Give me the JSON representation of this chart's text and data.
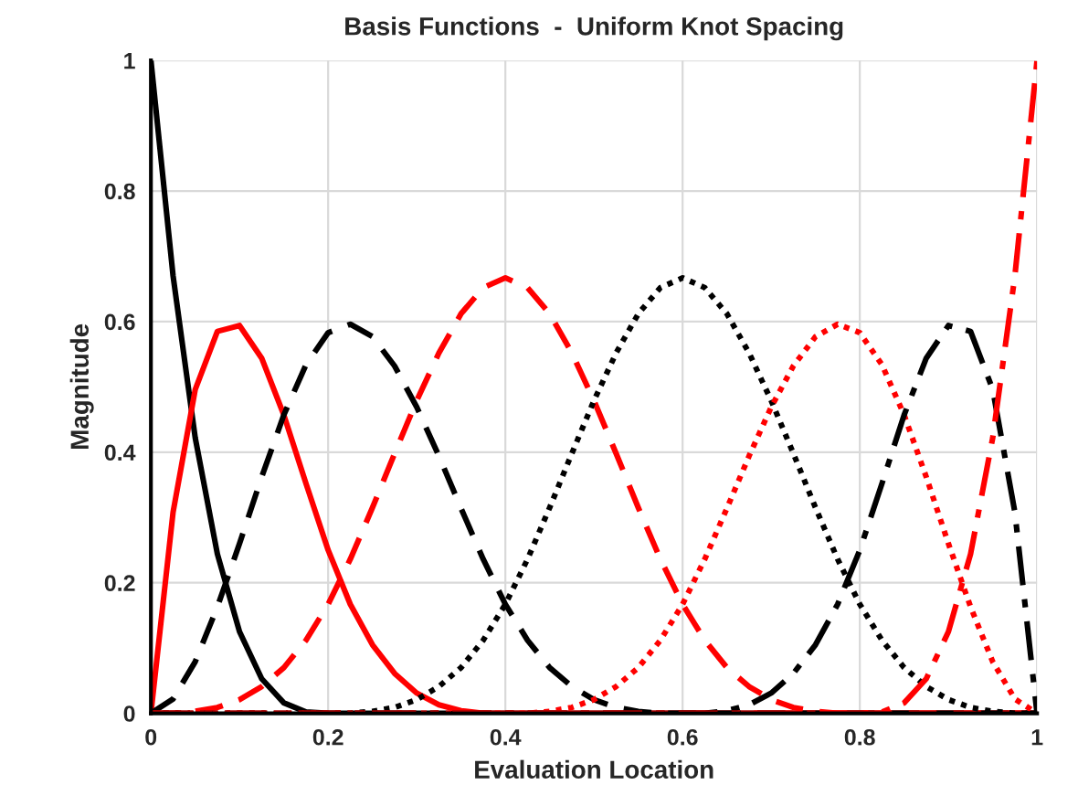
{
  "chart_data": {
    "type": "line",
    "title": "Basis Functions  -  Uniform Knot Spacing",
    "xlabel": "Evaluation Location",
    "ylabel": "Magnitude",
    "x": [
      0,
      0.025,
      0.05,
      0.075,
      0.1,
      0.125,
      0.15,
      0.175,
      0.2,
      0.225,
      0.25,
      0.275,
      0.3,
      0.325,
      0.35,
      0.375,
      0.4,
      0.425,
      0.45,
      0.475,
      0.5,
      0.525,
      0.55,
      0.575,
      0.6,
      0.625,
      0.65,
      0.675,
      0.7,
      0.725,
      0.75,
      0.775,
      0.8,
      0.825,
      0.85,
      0.875,
      0.9,
      0.925,
      0.95,
      0.975,
      1
    ],
    "series": [
      {
        "color": "#000000",
        "line_style": "solid",
        "values": [
          1,
          0.67,
          0.422,
          0.244,
          0.125,
          0.053,
          0.016,
          0.002,
          0,
          0,
          0,
          0,
          0,
          0,
          0,
          0,
          0,
          0,
          0,
          0,
          0,
          0,
          0,
          0,
          0,
          0,
          0,
          0,
          0,
          0,
          0,
          0,
          0,
          0,
          0,
          0,
          0,
          0,
          0,
          0,
          0
        ]
      },
      {
        "color": "#ff0000",
        "line_style": "solid",
        "values": [
          0,
          0.308,
          0.496,
          0.585,
          0.594,
          0.544,
          0.457,
          0.352,
          0.25,
          0.167,
          0.105,
          0.061,
          0.031,
          0.013,
          0.004,
          0,
          0,
          0,
          0,
          0,
          0,
          0,
          0,
          0,
          0,
          0,
          0,
          0,
          0,
          0,
          0,
          0,
          0,
          0,
          0,
          0,
          0,
          0,
          0,
          0,
          0
        ]
      },
      {
        "color": "#000000",
        "line_style": "dashed",
        "values": [
          0,
          0.022,
          0.079,
          0.163,
          0.26,
          0.362,
          0.457,
          0.534,
          0.583,
          0.596,
          0.577,
          0.532,
          0.469,
          0.394,
          0.314,
          0.236,
          0.167,
          0.112,
          0.07,
          0.041,
          0.021,
          0.009,
          0.003,
          0,
          0,
          0,
          0,
          0,
          0,
          0,
          0,
          0,
          0,
          0,
          0,
          0,
          0,
          0,
          0,
          0,
          0
        ]
      },
      {
        "color": "#ff0000",
        "line_style": "dashed",
        "values": [
          0,
          0,
          0.003,
          0.009,
          0.021,
          0.041,
          0.07,
          0.112,
          0.167,
          0.236,
          0.315,
          0.398,
          0.479,
          0.552,
          0.612,
          0.652,
          0.667,
          0.652,
          0.612,
          0.552,
          0.479,
          0.398,
          0.315,
          0.236,
          0.167,
          0.112,
          0.07,
          0.041,
          0.021,
          0.009,
          0.003,
          0,
          0,
          0,
          0,
          0,
          0,
          0,
          0,
          0,
          0
        ]
      },
      {
        "color": "#000000",
        "line_style": "dotted",
        "values": [
          0,
          0,
          0,
          0,
          0,
          0,
          0,
          0,
          0,
          0,
          0.003,
          0.009,
          0.021,
          0.041,
          0.07,
          0.112,
          0.167,
          0.236,
          0.315,
          0.398,
          0.479,
          0.552,
          0.612,
          0.652,
          0.667,
          0.652,
          0.612,
          0.552,
          0.479,
          0.398,
          0.315,
          0.236,
          0.167,
          0.112,
          0.07,
          0.041,
          0.021,
          0.009,
          0.003,
          0,
          0
        ]
      },
      {
        "color": "#ff0000",
        "line_style": "dotted",
        "values": [
          0,
          0,
          0,
          0,
          0,
          0,
          0,
          0,
          0,
          0,
          0,
          0,
          0,
          0,
          0,
          0,
          0,
          0,
          0.003,
          0.009,
          0.021,
          0.041,
          0.07,
          0.112,
          0.167,
          0.236,
          0.314,
          0.394,
          0.469,
          0.532,
          0.577,
          0.596,
          0.583,
          0.534,
          0.457,
          0.362,
          0.26,
          0.163,
          0.079,
          0.022,
          0
        ]
      },
      {
        "color": "#000000",
        "line_style": "dashdot",
        "values": [
          0,
          0,
          0,
          0,
          0,
          0,
          0,
          0,
          0,
          0,
          0,
          0,
          0,
          0,
          0,
          0,
          0,
          0,
          0,
          0,
          0,
          0,
          0,
          0,
          0,
          0,
          0.004,
          0.013,
          0.031,
          0.061,
          0.105,
          0.167,
          0.25,
          0.352,
          0.457,
          0.544,
          0.594,
          0.585,
          0.496,
          0.308,
          0
        ]
      },
      {
        "color": "#ff0000",
        "line_style": "dashdot",
        "values": [
          0,
          0,
          0,
          0,
          0,
          0,
          0,
          0,
          0,
          0,
          0,
          0,
          0,
          0,
          0,
          0,
          0,
          0,
          0,
          0,
          0,
          0,
          0,
          0,
          0,
          0,
          0,
          0,
          0,
          0,
          0,
          0,
          0,
          0.002,
          0.016,
          0.053,
          0.125,
          0.244,
          0.422,
          0.67,
          1
        ]
      }
    ],
    "xlim": [
      0,
      1
    ],
    "xticks": [
      0,
      0.2,
      0.4,
      0.6,
      0.8,
      1
    ],
    "ylim": [
      0,
      1
    ],
    "yticks": [
      0,
      0.2,
      0.4,
      0.6,
      0.8,
      1
    ],
    "grid": true,
    "legend": false
  }
}
